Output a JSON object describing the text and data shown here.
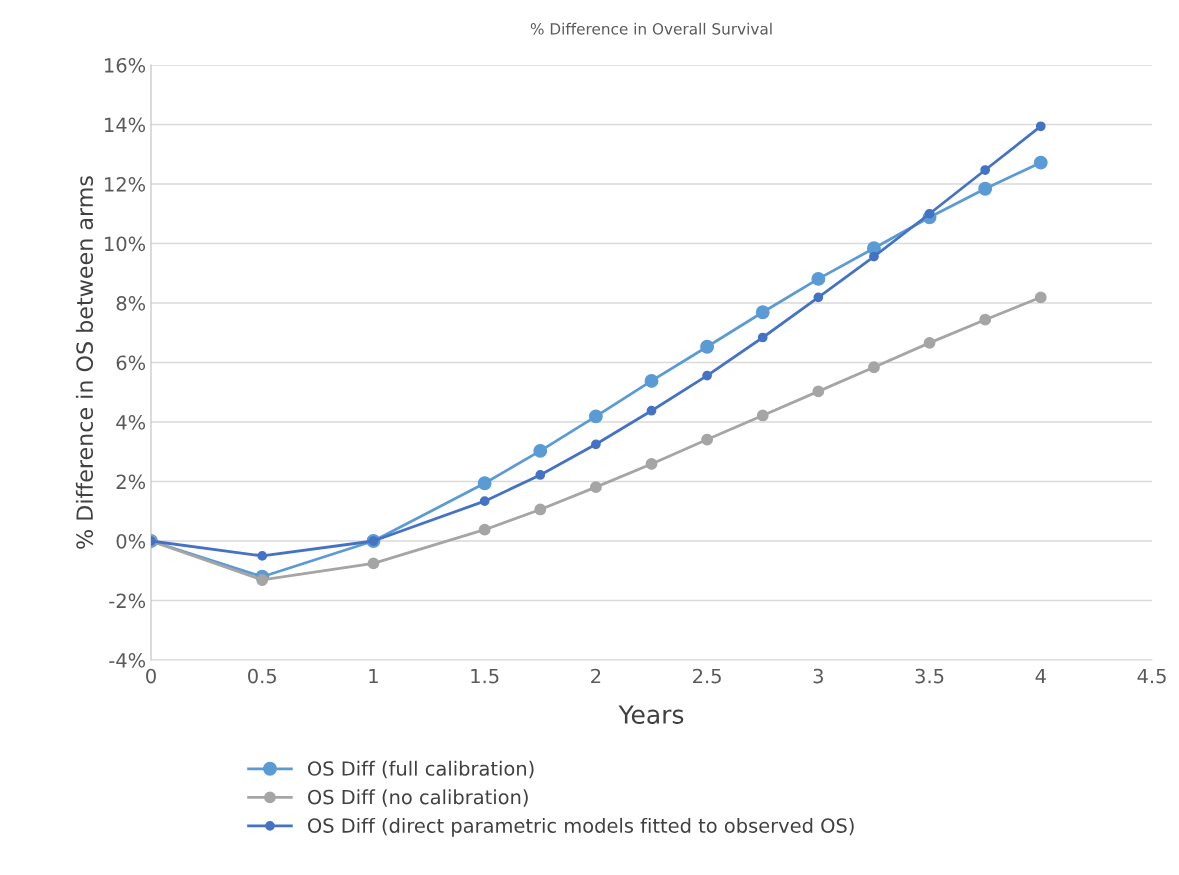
{
  "chart_data": {
    "type": "line",
    "title": "% Difference in Overall Survival",
    "xlabel": "Years",
    "ylabel": "% Difference in OS between arms",
    "x": [
      0,
      0.5,
      1,
      1.5,
      1.75,
      2,
      2.25,
      2.5,
      2.75,
      3,
      3.25,
      3.5,
      3.75,
      4
    ],
    "series": [
      {
        "name": "OS Diff (full calibration)",
        "color": "#5b9bd5",
        "values": [
          0,
          -1.2,
          0,
          1.94,
          3.03,
          4.19,
          5.38,
          6.53,
          7.69,
          8.81,
          9.84,
          10.88,
          11.84,
          12.72
        ]
      },
      {
        "name": "OS Diff (no calibration)",
        "color": "#a5a5a5",
        "values": [
          0,
          -1.31,
          -0.75,
          0.38,
          1.06,
          1.81,
          2.59,
          3.41,
          4.22,
          5.03,
          5.84,
          6.66,
          7.44,
          8.19
        ]
      },
      {
        "name": "OS Diff (direct parametric models fitted to observed OS)",
        "color": "#4472c4",
        "values": [
          0,
          -0.5,
          0,
          1.34,
          2.22,
          3.25,
          4.38,
          5.56,
          6.84,
          8.19,
          9.56,
          11.0,
          12.47,
          13.94
        ]
      }
    ],
    "xlim": [
      0,
      4.5
    ],
    "xticks": [
      0,
      0.5,
      1,
      1.5,
      2,
      2.5,
      3,
      3.5,
      4,
      4.5
    ],
    "ylim": [
      -4,
      16
    ],
    "yticks": [
      {
        "value": -4,
        "label": "-4%"
      },
      {
        "value": -2,
        "label": "-2%"
      },
      {
        "value": 0,
        "label": "0%"
      },
      {
        "value": 2,
        "label": "2%"
      },
      {
        "value": 4,
        "label": "4%"
      },
      {
        "value": 6,
        "label": "6%"
      },
      {
        "value": 8,
        "label": "8%"
      },
      {
        "value": 10,
        "label": "10%"
      },
      {
        "value": 12,
        "label": "12%"
      },
      {
        "value": 14,
        "label": "14%"
      },
      {
        "value": 16,
        "label": "16%"
      }
    ],
    "grid": "y",
    "legend": "bottom",
    "marker": "circle",
    "line_style": "solid"
  }
}
